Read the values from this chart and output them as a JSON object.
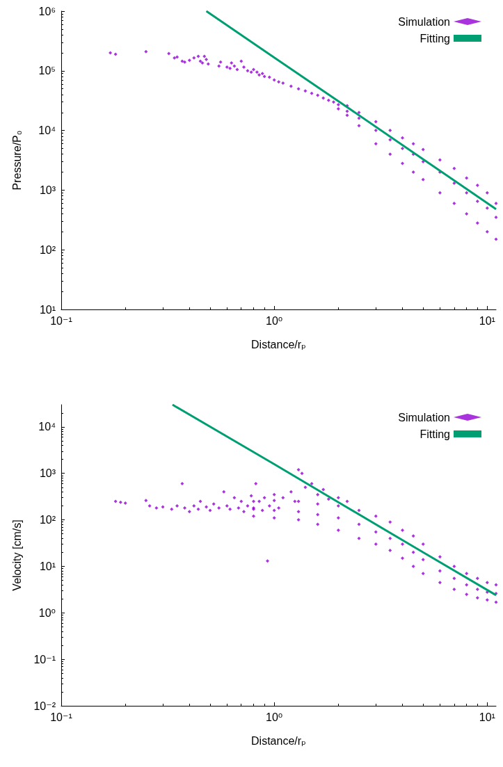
{
  "chart_data": [
    {
      "type": "scatter",
      "xlabel": "Distance/rₚ",
      "ylabel": "Pressure/P₀",
      "log": "xy",
      "xlim": [
        0.1,
        11
      ],
      "ylim": [
        10,
        1000000
      ],
      "xticks": [
        {
          "value": 0.1,
          "label": "10⁻¹"
        },
        {
          "value": 1,
          "label": "10⁰"
        },
        {
          "value": 10,
          "label": "10¹"
        }
      ],
      "yticks": [
        {
          "value": 10,
          "label": "10¹"
        },
        {
          "value": 100,
          "label": "10²"
        },
        {
          "value": 1000,
          "label": "10³"
        },
        {
          "value": 10000,
          "label": "10⁴"
        },
        {
          "value": 100000,
          "label": "10⁵"
        },
        {
          "value": 1000000,
          "label": "10⁶"
        }
      ],
      "legend": "top right",
      "grid": false,
      "marker": "diamond",
      "series": [
        {
          "name": "Simulation",
          "color": "#9400d3",
          "x": [
            0.17,
            0.18,
            0.25,
            0.32,
            0.34,
            0.35,
            0.37,
            0.38,
            0.4,
            0.42,
            0.44,
            0.45,
            0.46,
            0.47,
            0.48,
            0.49,
            0.55,
            0.56,
            0.6,
            0.62,
            0.63,
            0.65,
            0.67,
            0.7,
            0.72,
            0.75,
            0.78,
            0.8,
            0.83,
            0.85,
            0.88,
            0.9,
            0.95,
            1.0,
            1.05,
            1.1,
            1.2,
            1.3,
            1.4,
            1.5,
            1.6,
            1.7,
            1.8,
            1.9,
            2.0,
            2.0,
            2.2,
            2.2,
            2.2,
            2.5,
            2.5,
            2.5,
            3,
            3,
            3,
            3.5,
            3.5,
            3.5,
            4,
            4,
            4,
            4.5,
            4.5,
            4.5,
            5,
            5,
            5,
            6,
            6,
            6,
            7,
            7,
            7,
            8,
            8,
            8,
            9,
            9,
            9,
            10,
            10,
            10,
            11,
            11,
            11
          ],
          "values": [
            200000,
            190000,
            210000,
            195000,
            165000,
            170000,
            145000,
            140000,
            150000,
            165000,
            175000,
            145000,
            135000,
            175000,
            155000,
            130000,
            120000,
            140000,
            115000,
            110000,
            135000,
            120000,
            105000,
            145000,
            115000,
            100000,
            95000,
            105000,
            95000,
            85000,
            90000,
            80000,
            78000,
            70000,
            65000,
            62000,
            55000,
            50000,
            46000,
            42000,
            39000,
            35000,
            32000,
            30000,
            27000,
            23000,
            26000,
            21000,
            18000,
            20000,
            16000,
            12000,
            14000,
            10000,
            6000,
            10000,
            7000,
            4000,
            7500,
            5000,
            2800,
            6000,
            4000,
            2000,
            4800,
            3000,
            1500,
            3200,
            2000,
            900,
            2300,
            1300,
            600,
            1600,
            900,
            400,
            1200,
            650,
            280,
            900,
            500,
            200,
            600,
            350,
            150
          ]
        },
        {
          "name": "Fitting",
          "type": "line",
          "color": "#009e73",
          "marker": "none",
          "x": [
            0.48,
            1,
            2,
            5,
            11
          ],
          "values": [
            1000000,
            167000,
            31000,
            3300,
            480
          ]
        }
      ]
    },
    {
      "type": "scatter",
      "xlabel": "Distance/rₚ",
      "ylabel": "Velocity [cm/s]",
      "log": "xy",
      "xlim": [
        0.1,
        11
      ],
      "ylim": [
        0.01,
        30000
      ],
      "xticks": [
        {
          "value": 0.1,
          "label": "10⁻¹"
        },
        {
          "value": 1,
          "label": "10⁰"
        },
        {
          "value": 10,
          "label": "10¹"
        }
      ],
      "yticks": [
        {
          "value": 0.01,
          "label": "10⁻²"
        },
        {
          "value": 0.1,
          "label": "10⁻¹"
        },
        {
          "value": 1,
          "label": "10⁰"
        },
        {
          "value": 10,
          "label": "10¹"
        },
        {
          "value": 100,
          "label": "10²"
        },
        {
          "value": 1000,
          "label": "10³"
        },
        {
          "value": 10000,
          "label": "10⁴"
        }
      ],
      "legend": "top right",
      "grid": false,
      "marker": "diamond",
      "series": [
        {
          "name": "Simulation",
          "color": "#9400d3",
          "x": [
            0.18,
            0.19,
            0.2,
            0.25,
            0.26,
            0.28,
            0.3,
            0.33,
            0.35,
            0.37,
            0.38,
            0.4,
            0.42,
            0.44,
            0.45,
            0.48,
            0.5,
            0.52,
            0.55,
            0.58,
            0.6,
            0.62,
            0.65,
            0.68,
            0.7,
            0.72,
            0.75,
            0.78,
            0.8,
            0.82,
            0.85,
            0.88,
            0.9,
            0.93,
            0.95,
            1.0,
            1.05,
            1.1,
            1.2,
            1.25,
            1.3,
            1.35,
            1.4,
            1.5,
            1.6,
            1.7,
            1.8,
            2.0,
            2.2,
            0.8,
            0.8,
            0.8,
            1,
            1,
            1,
            1.3,
            1.3,
            1.3,
            1.6,
            1.6,
            1.6,
            2,
            2,
            2,
            2.5,
            2.5,
            2.5,
            3,
            3,
            3,
            3.5,
            3.5,
            3.5,
            4,
            4,
            4,
            4.5,
            4.5,
            4.5,
            5,
            5,
            5,
            6,
            6,
            6,
            7,
            7,
            7,
            8,
            8,
            8,
            9,
            9,
            9,
            10,
            10,
            10,
            11,
            11,
            11
          ],
          "values": [
            250,
            240,
            230,
            260,
            200,
            180,
            190,
            170,
            200,
            600,
            180,
            150,
            200,
            170,
            250,
            190,
            160,
            220,
            180,
            400,
            200,
            170,
            300,
            180,
            250,
            150,
            200,
            330,
            180,
            600,
            250,
            160,
            300,
            13,
            200,
            350,
            180,
            300,
            400,
            250,
            1200,
            1000,
            500,
            600,
            350,
            450,
            280,
            300,
            250,
            250,
            170,
            120,
            260,
            160,
            110,
            250,
            150,
            100,
            220,
            130,
            80,
            200,
            110,
            60,
            160,
            80,
            40,
            120,
            55,
            30,
            90,
            40,
            22,
            60,
            30,
            15,
            45,
            20,
            10,
            30,
            14,
            7,
            16,
            8,
            4.5,
            10,
            5.5,
            3.2,
            7,
            4,
            2.5,
            5.5,
            3.2,
            2.1,
            4.5,
            2.8,
            1.9,
            4,
            2.6,
            1.7
          ]
        },
        {
          "name": "Fitting",
          "type": "line",
          "color": "#009e73",
          "marker": "none",
          "x": [
            0.333,
            1,
            2,
            5,
            11
          ],
          "values": [
            30000,
            1580,
            240,
            20,
            2.4
          ]
        }
      ]
    }
  ]
}
